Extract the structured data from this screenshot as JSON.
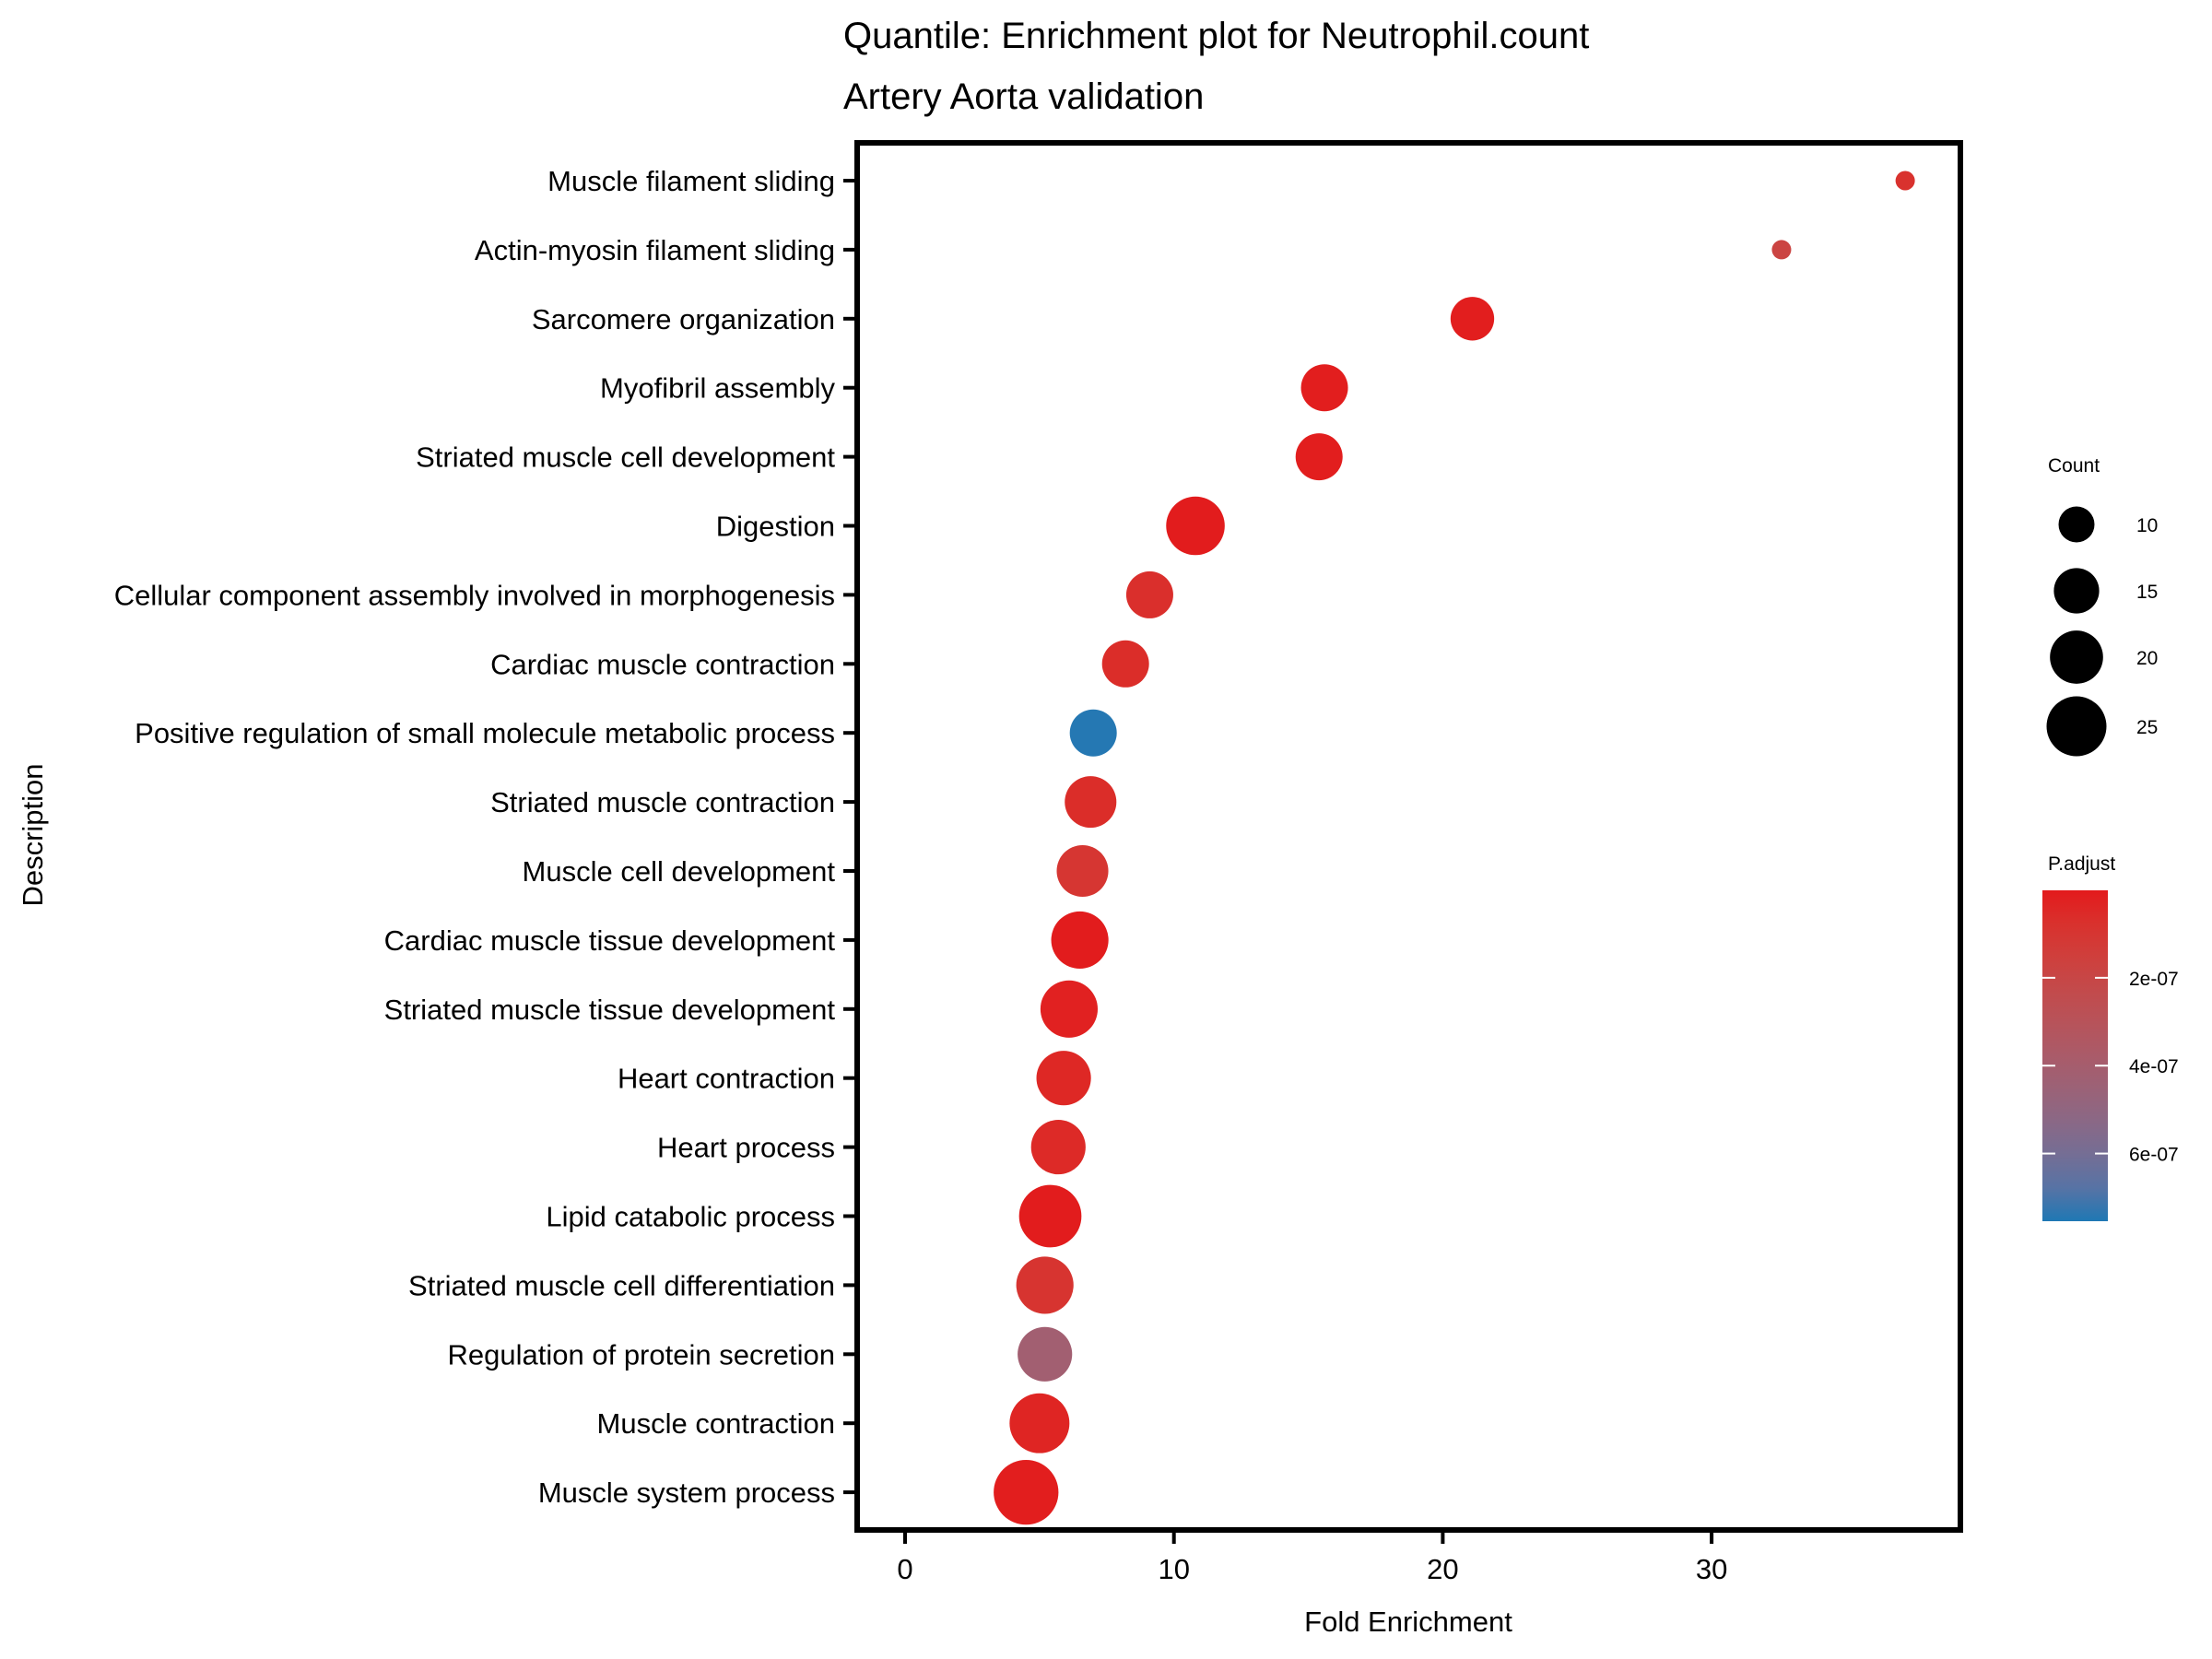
{
  "chart_data": {
    "type": "scatter",
    "title": "Quantile: Enrichment plot for Neutrophil.count",
    "subtitle": "Artery Aorta validation",
    "xlabel": "Fold Enrichment",
    "ylabel": "Description",
    "xlim": [
      -1.8,
      39.2
    ],
    "xticks": [
      0,
      10,
      20,
      30
    ],
    "xtick_labels": [
      "0",
      "10",
      "20",
      "30"
    ],
    "grid": false,
    "points": [
      {
        "description": "Muscle filament sliding",
        "fold_enrichment": 37.2,
        "count": 4,
        "p_adjust": 8e-08
      },
      {
        "description": "Actin-myosin filament sliding",
        "fold_enrichment": 32.6,
        "count": 4,
        "p_adjust": 1.8e-07
      },
      {
        "description": "Sarcomere organization",
        "fold_enrichment": 21.1,
        "count": 14,
        "p_adjust": 1e-08
      },
      {
        "description": "Myofibril assembly",
        "fold_enrichment": 15.6,
        "count": 16,
        "p_adjust": 1e-08
      },
      {
        "description": "Striated muscle cell development",
        "fold_enrichment": 15.4,
        "count": 16,
        "p_adjust": 1e-08
      },
      {
        "description": "Digestion",
        "fold_enrichment": 10.8,
        "count": 24,
        "p_adjust": 5e-09
      },
      {
        "description": "Cellular component assembly involved in morphogenesis",
        "fold_enrichment": 9.1,
        "count": 16,
        "p_adjust": 7e-08
      },
      {
        "description": "Cardiac muscle contraction",
        "fold_enrichment": 8.2,
        "count": 16,
        "p_adjust": 6e-08
      },
      {
        "description": "Positive regulation of small molecule metabolic process",
        "fold_enrichment": 7.0,
        "count": 16,
        "p_adjust": 7.5e-07
      },
      {
        "description": "Striated muscle contraction",
        "fold_enrichment": 6.9,
        "count": 19,
        "p_adjust": 6e-08
      },
      {
        "description": "Muscle cell development",
        "fold_enrichment": 6.6,
        "count": 19,
        "p_adjust": 1e-07
      },
      {
        "description": "Cardiac muscle tissue development",
        "fold_enrichment": 6.5,
        "count": 23,
        "p_adjust": 5e-09
      },
      {
        "description": "Striated muscle tissue development",
        "fold_enrichment": 6.1,
        "count": 23,
        "p_adjust": 2e-08
      },
      {
        "description": "Heart contraction",
        "fold_enrichment": 5.9,
        "count": 21,
        "p_adjust": 4e-08
      },
      {
        "description": "Heart process",
        "fold_enrichment": 5.7,
        "count": 21,
        "p_adjust": 5e-08
      },
      {
        "description": "Lipid catabolic process",
        "fold_enrichment": 5.4,
        "count": 27,
        "p_adjust": 5e-09
      },
      {
        "description": "Striated muscle cell differentiation",
        "fold_enrichment": 5.2,
        "count": 23,
        "p_adjust": 9e-08
      },
      {
        "description": "Regulation of protein secretion",
        "fold_enrichment": 5.2,
        "count": 21,
        "p_adjust": 4.2e-07
      },
      {
        "description": "Muscle contraction",
        "fold_enrichment": 5.0,
        "count": 25,
        "p_adjust": 3e-08
      },
      {
        "description": "Muscle system process",
        "fold_enrichment": 4.5,
        "count": 29,
        "p_adjust": 1e-08
      }
    ],
    "legend": {
      "placement": "right",
      "size": {
        "title": "Count",
        "breaks": [
          10,
          15,
          20,
          25
        ],
        "labels": [
          "10",
          "15",
          "20",
          "25"
        ]
      },
      "color": {
        "title": "P.adjust",
        "limits": [
          1e-09,
          7.54e-07
        ],
        "breaks": [
          2e-07,
          4e-07,
          6e-07
        ],
        "labels": [
          "2e-07",
          "4e-07",
          "6e-07"
        ],
        "low_color": "#E31A1C",
        "high_color": "#1F78B4"
      }
    }
  }
}
